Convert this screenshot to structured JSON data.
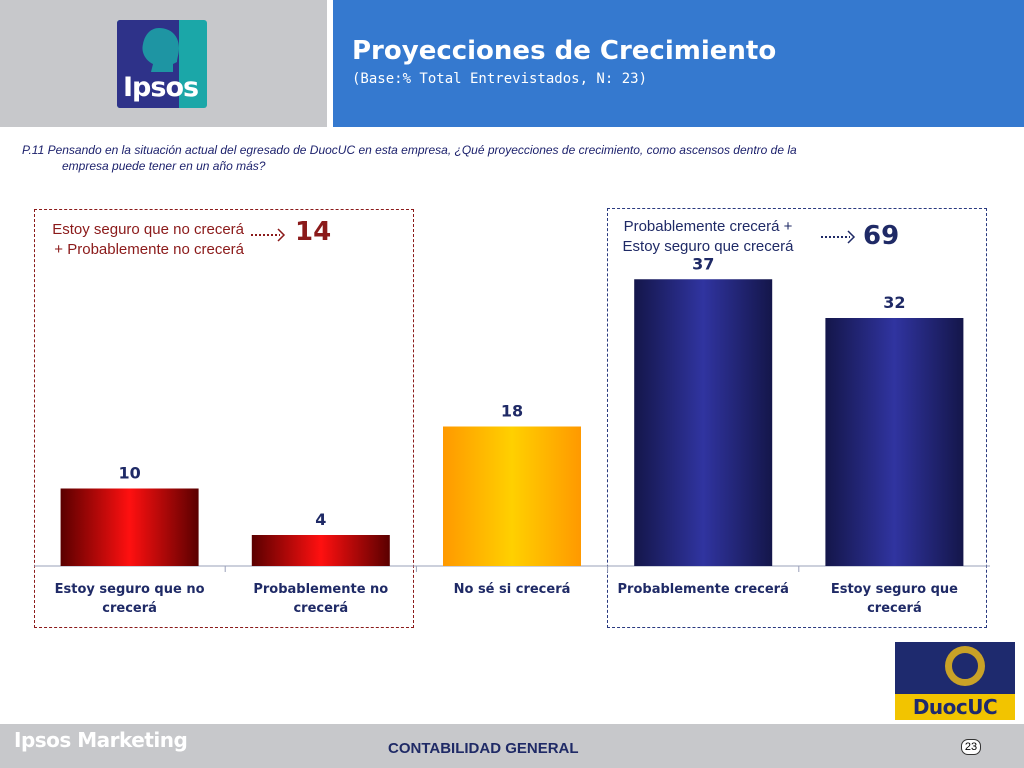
{
  "header": {
    "logo_text": "Ipsos",
    "title": "Proyecciones de Crecimiento",
    "subtitle": "(Base:% Total Entrevistados, N: 23)"
  },
  "question": {
    "line1": "P.11 Pensando en la situación actual del egresado de DuocUC en  esta empresa, ¿Qué  proyecciones de crecimiento, como ascensos dentro de la",
    "line2": "empresa  puede tener en un año más?"
  },
  "summary_left": {
    "label": "Estoy seguro que no crecerá + Probablemente no crecerá",
    "value": "14"
  },
  "summary_right": {
    "label": "Probablemente crecerá + Estoy seguro que crecerá",
    "value": "69"
  },
  "colors": {
    "red": "#c00000",
    "orange": "#ffc000",
    "navy": "#2b2f8c",
    "title_bar": "#3579cf",
    "box_left": "#8b1a1a",
    "box_right": "#2a3a80"
  },
  "chart_data": {
    "type": "bar",
    "categories": [
      "Estoy seguro que no crecerá",
      "Probablemente no crecerá",
      "No sé si crecerá",
      "Probablemente crecerá",
      "Estoy seguro que crecerá"
    ],
    "values": [
      10,
      4,
      18,
      37,
      32
    ],
    "bar_colors": [
      "red",
      "red",
      "orange",
      "navy",
      "navy"
    ],
    "data_labels": [
      "10",
      "4",
      "18",
      "37",
      "32"
    ],
    "ylim": [
      0,
      40
    ],
    "grid": false,
    "legend": "none"
  },
  "footer": {
    "brand": "Ipsos Marketing",
    "center_text": "CONTABILIDAD GENERAL",
    "page_number": "23",
    "duoc_logo_text": "DuocUC"
  }
}
